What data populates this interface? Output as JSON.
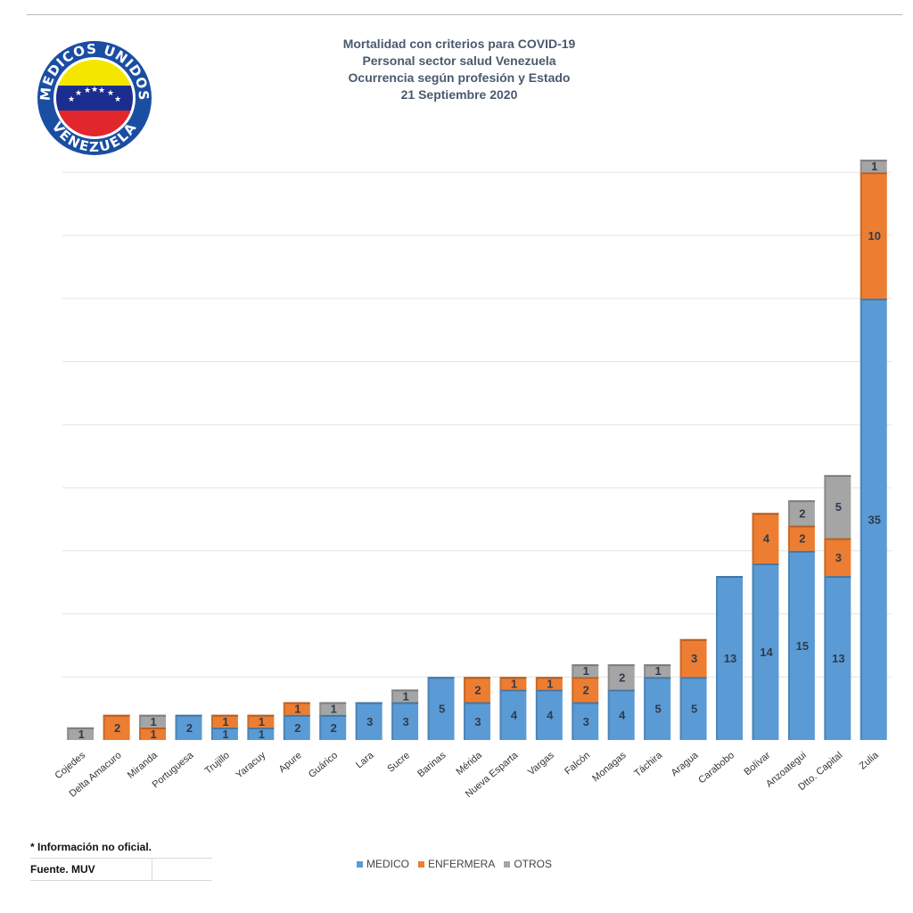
{
  "title_lines": [
    "Mortalidad con criterios para COVID-19",
    "Personal sector salud Venezuela",
    "Ocurrencia según profesión y Estado",
    "21 Septiembre 2020"
  ],
  "logo": {
    "text_top": "MEDICOS UNIDOS",
    "text_bottom": "VENEZUELA",
    "colors": {
      "yellow": "#f5e600",
      "blue": "#1b2e8f",
      "red": "#e1262c",
      "ring": "#1a4ea3"
    }
  },
  "notes": {
    "unofficial": "* Información no oficial.",
    "source": "Fuente. MUV"
  },
  "chart_data": {
    "type": "bar",
    "stacked": true,
    "title": "Mortalidad con criterios para COVID-19 / Personal sector salud Venezuela / Ocurrencia según profesión y Estado / 21 Septiembre 2020",
    "categories": [
      "Cojedes",
      "Delta Amacuro",
      "Miranda",
      "Portuguesa",
      "Trujillo",
      "Yaracuy",
      "Apure",
      "Guárico",
      "Lara",
      "Sucre",
      "Barinas",
      "Mérida",
      "Nueva Esparta",
      "Vargas",
      "Falcón",
      "Monagas",
      "Táchira",
      "Aragua",
      "Carabobo",
      "Bolívar",
      "Anzoategui",
      "Dtto. Capital",
      "Zulia"
    ],
    "series": [
      {
        "name": "MEDICO",
        "color": "#5b9bd5",
        "values": [
          0,
          0,
          0,
          2,
          1,
          1,
          2,
          2,
          3,
          3,
          5,
          3,
          4,
          4,
          3,
          4,
          5,
          5,
          13,
          14,
          15,
          13,
          35
        ]
      },
      {
        "name": "ENFERMERA",
        "color": "#ed7d31",
        "values": [
          0,
          2,
          1,
          0,
          1,
          1,
          1,
          0,
          0,
          0,
          0,
          2,
          1,
          1,
          2,
          0,
          0,
          3,
          0,
          4,
          2,
          3,
          10
        ]
      },
      {
        "name": "OTROS",
        "color": "#a5a5a5",
        "values": [
          1,
          0,
          1,
          0,
          0,
          0,
          0,
          1,
          0,
          1,
          0,
          0,
          0,
          0,
          1,
          2,
          1,
          0,
          0,
          0,
          2,
          5,
          1
        ]
      }
    ],
    "ylim": [
      0,
      47
    ],
    "grid": true,
    "legend": "bottom"
  }
}
